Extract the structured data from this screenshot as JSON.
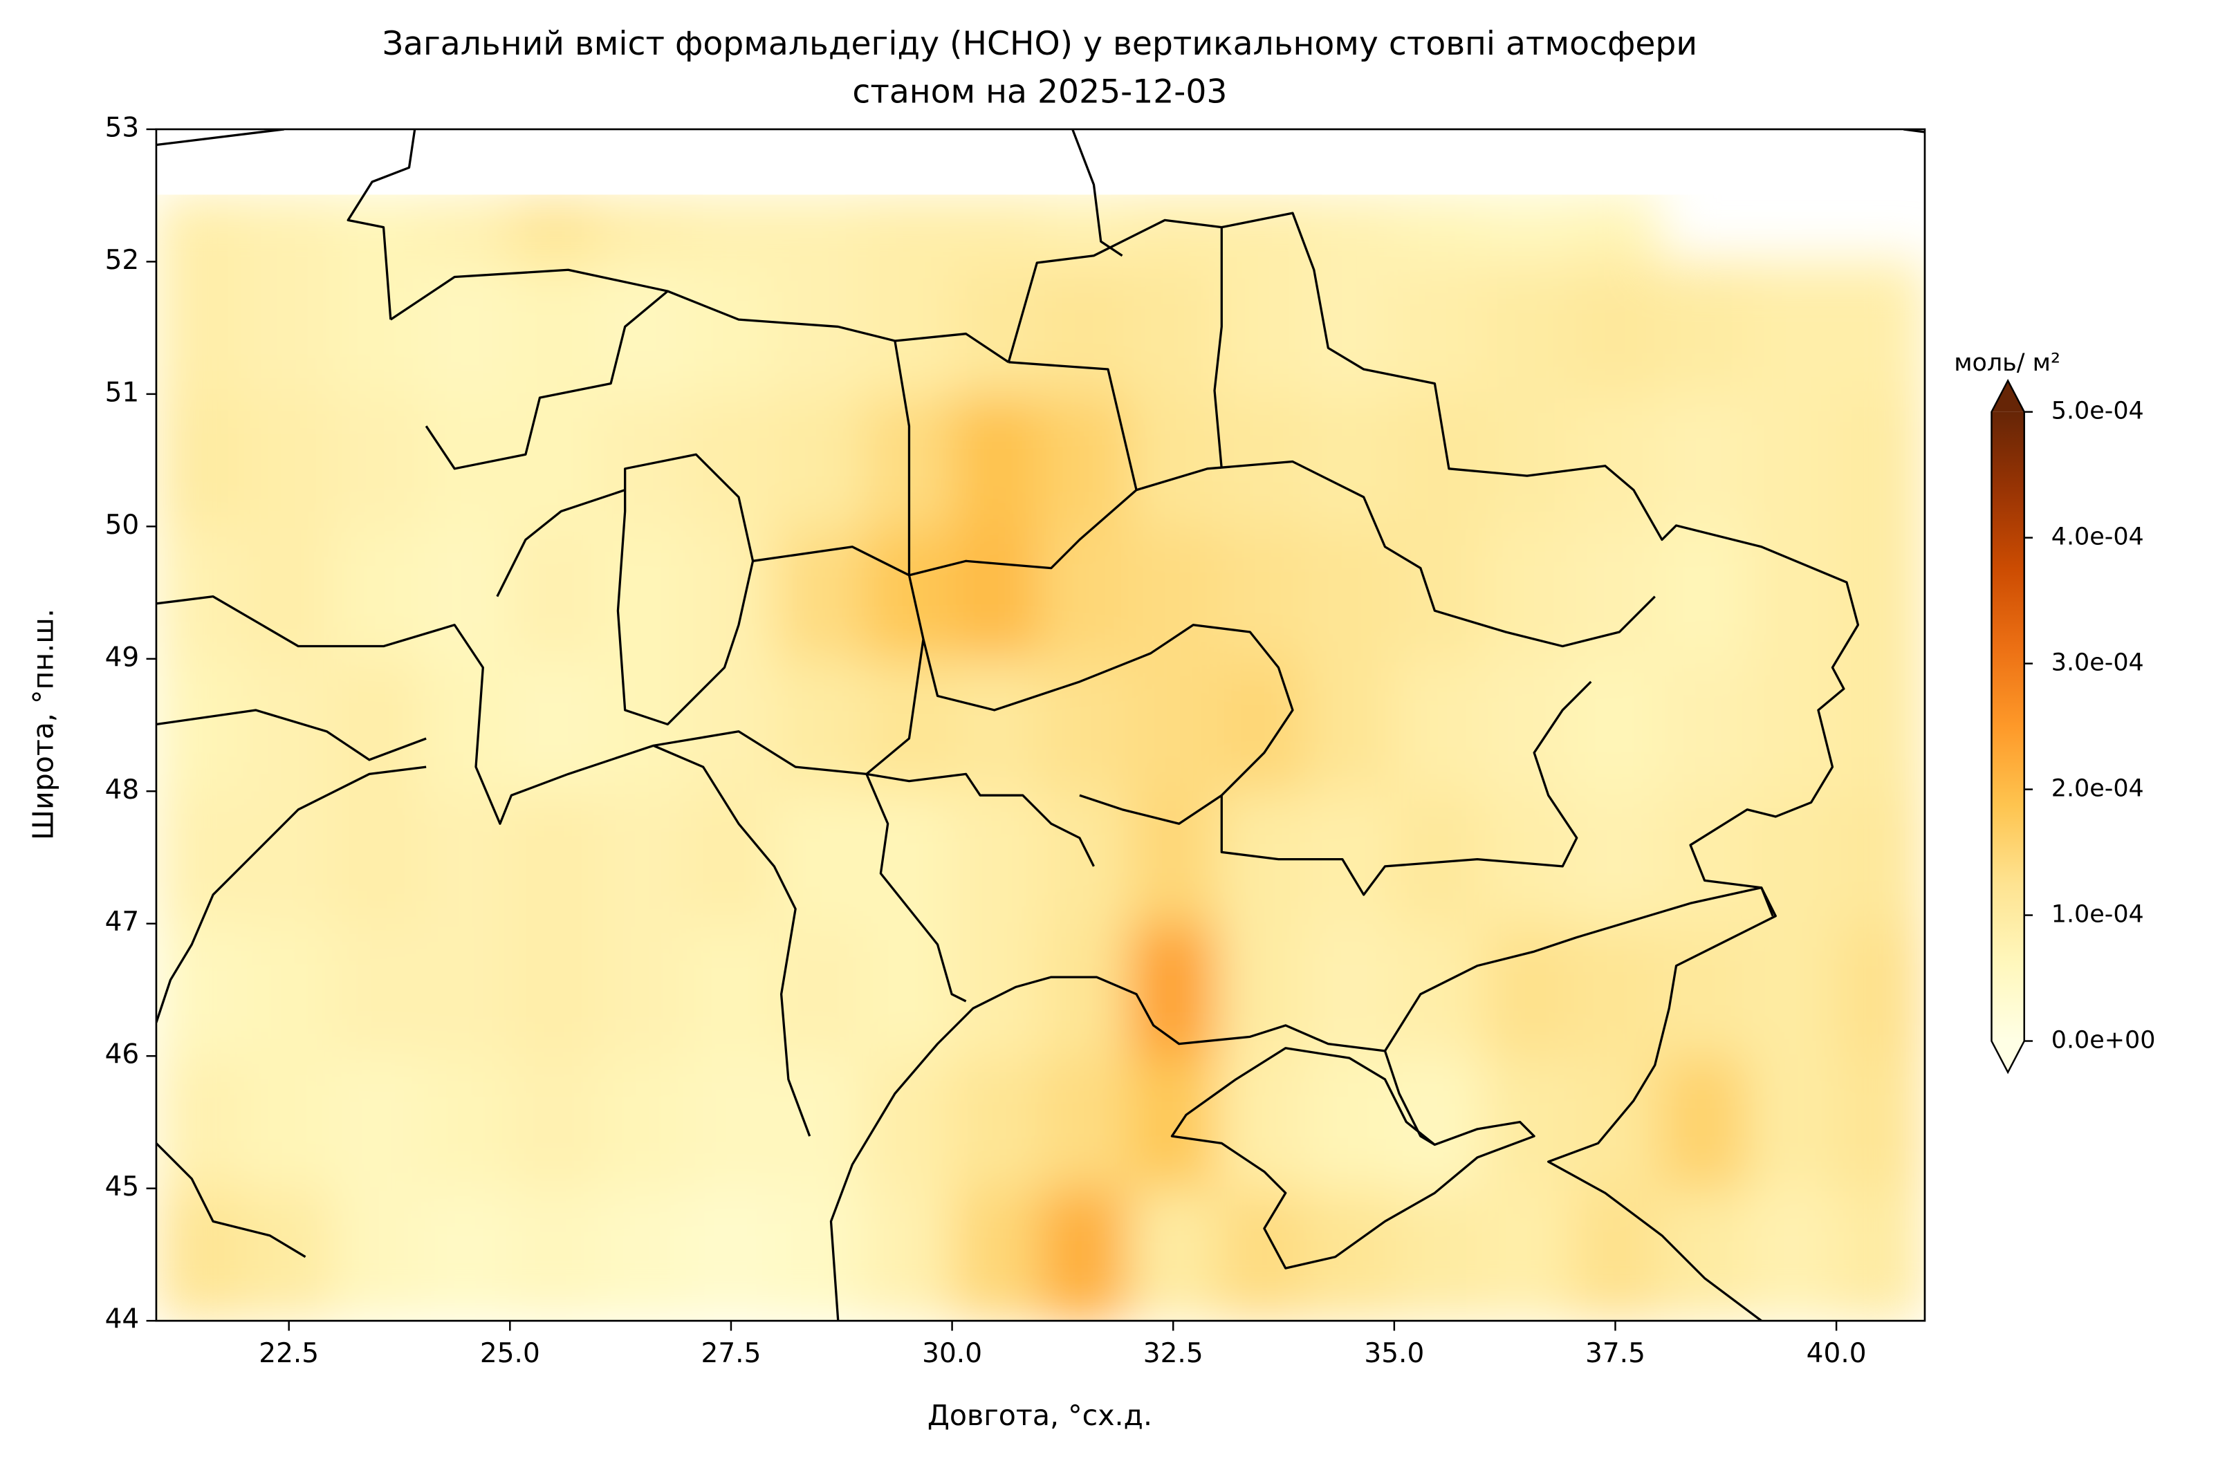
{
  "chart_data": {
    "type": "heatmap",
    "title": [
      "Загальний вміст формальдегіду (HCHO) у вертикальному стовпі атмосфери",
      "станом на 2025-12-03"
    ],
    "x_label": "Довгота, °сх.д.",
    "y_label": "Широта, °пн.ш.",
    "xlim": [
      21,
      41
    ],
    "ylim": [
      44,
      53
    ],
    "xticks": [
      22.5,
      {
        "value": 25,
        "label": "25.0"
      },
      27.5,
      {
        "value": 30,
        "label": "30.0"
      },
      32.5,
      {
        "value": 35,
        "label": "35.0"
      },
      37.5,
      {
        "value": 40,
        "label": "40.0"
      }
    ],
    "yticks": [
      44,
      45,
      46,
      47,
      48,
      49,
      50,
      51,
      52,
      53
    ],
    "x_bins": [
      21,
      22,
      23,
      24,
      25,
      26,
      27,
      28,
      29,
      30,
      31,
      32,
      33,
      34,
      35,
      36,
      37,
      38,
      39,
      40,
      41
    ],
    "y_bins": [
      44,
      45,
      46,
      47,
      48,
      49,
      50,
      51,
      52,
      52.5
    ],
    "values": [
      [
        0.00012,
        0.0001,
        6e-05,
        5e-05,
        6e-05,
        5e-05,
        4e-05,
        5e-05,
        8e-05,
        0.00015,
        0.00022,
        0.0001,
        0.00014,
        0.00012,
        0.0001,
        9e-05,
        0.00013,
        0.0001,
        8e-05,
        0.0001
      ],
      [
        8e-05,
        7e-05,
        6e-05,
        7e-05,
        8e-05,
        7e-05,
        6e-05,
        6e-05,
        9e-05,
        0.00012,
        0.00014,
        0.00018,
        9e-05,
        7e-05,
        6e-05,
        0.0001,
        0.00011,
        0.00016,
        0.0001,
        0.00012
      ],
      [
        6e-05,
        7e-05,
        8e-05,
        8e-05,
        9e-05,
        8e-05,
        7e-05,
        8e-05,
        7e-05,
        9e-05,
        0.00012,
        0.00024,
        0.0001,
        8e-05,
        9e-05,
        0.00013,
        0.00012,
        0.00011,
        0.0001,
        0.00013
      ],
      [
        8e-05,
        8e-05,
        9e-05,
        8e-05,
        9e-05,
        8e-05,
        9e-05,
        7e-05,
        7e-05,
        9e-05,
        0.00011,
        0.00015,
        0.0001,
        9e-05,
        0.00011,
        9e-05,
        8e-05,
        9e-05,
        0.0001,
        0.00011
      ],
      [
        7e-05,
        8e-05,
        9e-05,
        7e-05,
        6e-05,
        7e-05,
        8e-05,
        0.0001,
        0.00012,
        0.00011,
        0.00013,
        0.00014,
        0.00015,
        0.00012,
        9e-05,
        8e-05,
        7e-05,
        8e-05,
        9e-05,
        0.0001
      ],
      [
        8e-05,
        9e-05,
        7e-05,
        6e-05,
        8e-05,
        7e-05,
        8e-05,
        0.00014,
        0.00018,
        0.0002,
        0.00015,
        0.00014,
        0.00013,
        0.00012,
        0.00011,
        9e-05,
        8e-05,
        7e-05,
        9e-05,
        0.0001
      ],
      [
        0.0001,
        9e-05,
        8e-05,
        7e-05,
        7e-05,
        8e-05,
        9e-05,
        0.0001,
        0.00014,
        0.00019,
        0.00016,
        0.00012,
        0.00011,
        0.0001,
        0.00011,
        0.0001,
        9e-05,
        8e-05,
        9e-05,
        0.0001
      ],
      [
        9e-05,
        8e-05,
        7e-05,
        6e-05,
        7e-05,
        6e-05,
        7e-05,
        8e-05,
        9e-05,
        0.00011,
        0.00012,
        0.00011,
        9e-05,
        8e-05,
        9e-05,
        0.0001,
        0.00011,
        0.0001,
        9e-05,
        9e-05
      ],
      [
        9e-05,
        8e-05,
        7e-05,
        8e-05,
        0.00012,
        9e-05,
        8e-05,
        8e-05,
        9e-05,
        9e-05,
        8e-05,
        9e-05,
        9e-05,
        8e-05,
        7e-05,
        6e-05,
        7e-05,
        null,
        null,
        null
      ]
    ],
    "colormap": [
      "#ffffe5",
      "#fff7bc",
      "#fee391",
      "#fec44f",
      "#fe9929",
      "#ec7014",
      "#cc4c02",
      "#993404",
      "#662506"
    ],
    "colorbar": {
      "label": "моль/ м²",
      "lim": [
        0,
        0.0005
      ],
      "extend": "both",
      "ticks": [
        {
          "value": 0,
          "label": "0.0e+00"
        },
        {
          "value": 0.0001,
          "label": "1.0e-04"
        },
        {
          "value": 0.0002,
          "label": "2.0e-04"
        },
        {
          "value": 0.0003,
          "label": "3.0e-04"
        },
        {
          "value": 0.0004,
          "label": "4.0e-04"
        },
        {
          "value": 0.0005,
          "label": "5.0e-04"
        }
      ]
    }
  }
}
